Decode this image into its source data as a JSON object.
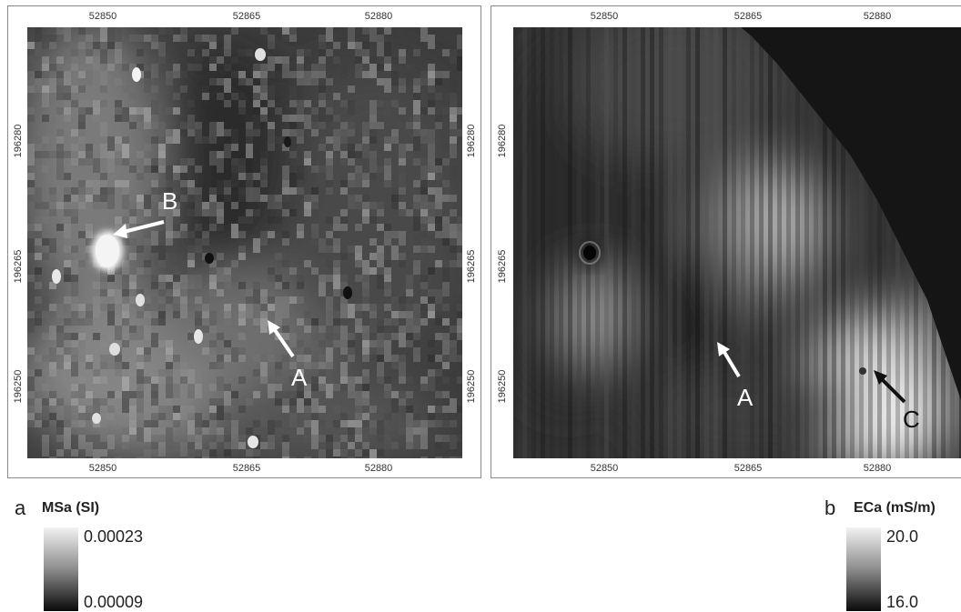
{
  "panel_a": {
    "letter": "a",
    "legend_title": "MSa (SI)",
    "legend_max": "0.00023",
    "legend_min": "0.00009",
    "x_ticks": [
      "52850",
      "52865",
      "52880"
    ],
    "y_ticks": [
      "196280",
      "196265",
      "196250"
    ],
    "markers": [
      {
        "label": "B",
        "color": "#ffffff"
      },
      {
        "label": "A",
        "color": "#ffffff"
      }
    ]
  },
  "panel_b": {
    "letter": "b",
    "legend_title": "ECa (mS/m)",
    "legend_max": "20.0",
    "legend_min": "16.0",
    "x_ticks": [
      "52850",
      "52865",
      "52880"
    ],
    "y_ticks": [
      "196280",
      "196265",
      "196250"
    ],
    "markers": [
      {
        "label": "A",
        "color": "#ffffff"
      },
      {
        "label": "C",
        "color": "#111111"
      }
    ]
  }
}
